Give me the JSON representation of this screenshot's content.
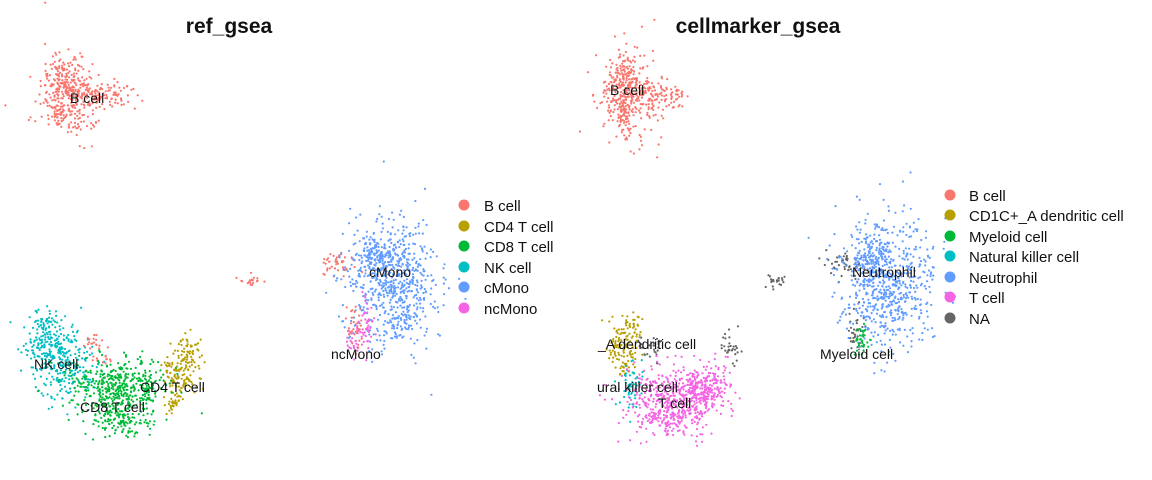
{
  "chart_data": [
    {
      "type": "scatter",
      "title": "ref_gsea",
      "legend_position": "right",
      "grid": false,
      "axes_visible": false,
      "legend": [
        {
          "label": "B cell",
          "color": "#F8766D"
        },
        {
          "label": "CD4 T cell",
          "color": "#B79F00"
        },
        {
          "label": "CD8 T cell",
          "color": "#00BA38"
        },
        {
          "label": "NK cell",
          "color": "#00BFC4"
        },
        {
          "label": "cMono",
          "color": "#619CFF"
        },
        {
          "label": "ncMono",
          "color": "#F564E3"
        }
      ],
      "cluster_labels": [
        "B cell",
        "cMono",
        "ncMono",
        "NK cell",
        "CD4 T cell",
        "CD8 T cell"
      ]
    },
    {
      "type": "scatter",
      "title": "cellmarker_gsea",
      "legend_position": "right",
      "grid": false,
      "axes_visible": false,
      "legend": [
        {
          "label": "B cell",
          "color": "#F8766D"
        },
        {
          "label": "CD1C+_A dendritic cell",
          "color": "#B79F00"
        },
        {
          "label": "Myeloid cell",
          "color": "#00BA38"
        },
        {
          "label": "Natural killer cell",
          "color": "#00BFC4"
        },
        {
          "label": "Neutrophil",
          "color": "#619CFF"
        },
        {
          "label": "T cell",
          "color": "#F564E3"
        },
        {
          "label": "NA",
          "color": "#666666"
        }
      ],
      "cluster_labels": [
        "B cell",
        "Neutrophil",
        "Myeloid cell",
        "_A dendritic cell",
        "ural killer cell",
        "T cell"
      ]
    }
  ]
}
